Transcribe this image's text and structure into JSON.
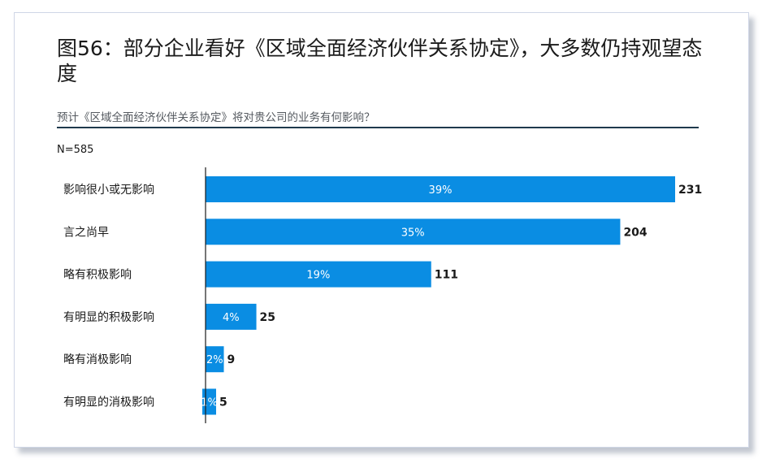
{
  "title": "图56：部分企业看好《区域全面经济伙伴关系协定》，大多数仍持观望态度",
  "subtitle": "预计《区域全面经济伙伴关系协定》将对贵公司的业务有何影响？",
  "note": "N=585",
  "colors": {
    "bar": "#0a8de3",
    "rule": "#1f3a4d",
    "axis": "#1a1a1a"
  },
  "chart_data": {
    "type": "bar",
    "orientation": "horizontal",
    "title": "图56：部分企业看好《区域全面经济伙伴关系协定》，大多数仍持观望态度",
    "subtitle": "预计《区域全面经济伙伴关系协定》将对贵公司的业务有何影响？",
    "categories": [
      "影响很小或无影响",
      "言之尚早",
      "略有积极影响",
      "有明显的积极影响",
      "略有消极影响",
      "有明显的消极影响"
    ],
    "values": [
      231,
      204,
      111,
      25,
      9,
      5
    ],
    "percent_labels": [
      "39%",
      "35%",
      "19%",
      "4%",
      "2%",
      "1%"
    ],
    "xlim": [
      0,
      231
    ],
    "grid": false,
    "legend": "none"
  }
}
